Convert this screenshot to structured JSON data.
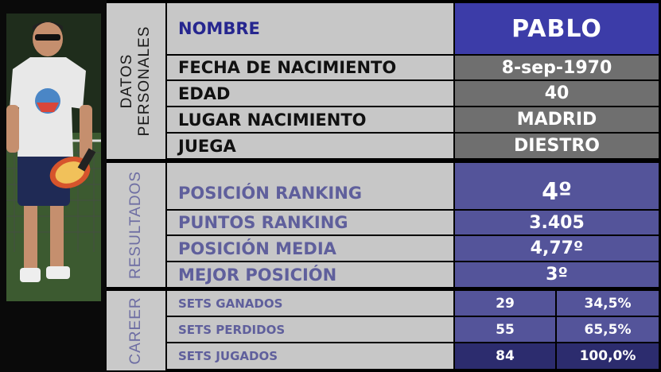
{
  "sections": {
    "personal": "DATOS PERSONALES",
    "results": "RESULTADOS",
    "career": "CAREER"
  },
  "personal": [
    {
      "label": "NOMBRE",
      "value": "PABLO"
    },
    {
      "label": "FECHA DE NACIMIENTO",
      "value": "8-sep-1970"
    },
    {
      "label": "EDAD",
      "value": "40"
    },
    {
      "label": "LUGAR NACIMIENTO",
      "value": "MADRID"
    },
    {
      "label": "JUEGA",
      "value": "DIESTRO"
    }
  ],
  "results": [
    {
      "label": "POSICIÓN RANKING",
      "value": "4º"
    },
    {
      "label": "PUNTOS RANKING",
      "value": "3.405"
    },
    {
      "label": "POSICIÓN MEDIA",
      "value": "4,77º"
    },
    {
      "label": "MEJOR POSICIÓN",
      "value": "3º"
    }
  ],
  "career": [
    {
      "label": "SETS GANADOS",
      "count": "29",
      "percent": "34,5%"
    },
    {
      "label": "SETS PERDIDOS",
      "count": "55",
      "percent": "65,5%"
    },
    {
      "label": "SETS JUGADOS",
      "count": "84",
      "percent": "100,0%"
    }
  ],
  "colors": {
    "name_bg": "#3c3ca8",
    "value_grey": "#6f6f6f",
    "value_blue": "#54549a",
    "label_grey": "#c7c7c7",
    "label_blue_text": "#5f5f9c"
  }
}
